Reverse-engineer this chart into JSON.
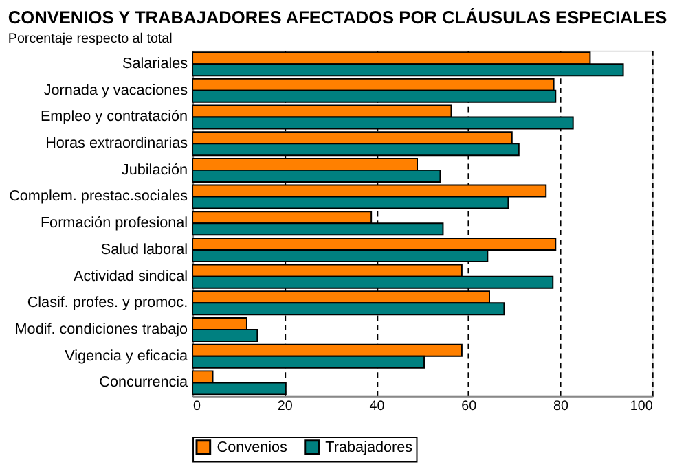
{
  "chart_data": {
    "type": "bar",
    "orientation": "horizontal",
    "title": "CONVENIOS Y TRABAJADORES AFECTADOS POR CLÁUSULAS ESPECIALES",
    "subtitle": "Porcentaje respecto al total",
    "categories": [
      "Salariales",
      "Jornada y vacaciones",
      "Empleo y contratación",
      "Horas extraordinarias",
      "Jubilación",
      "Complem. prestac.sociales",
      "Formación profesional",
      "Salud laboral",
      "Actividad sindical",
      "Clasif. profes. y promoc.",
      "Modif. condiciones trabajo",
      "Vigencia y eficacia",
      "Concurrencia"
    ],
    "series": [
      {
        "name": "Convenios",
        "color": "#ff8000",
        "values": [
          86.5,
          78.6,
          56.3,
          69.5,
          48.9,
          76.9,
          38.9,
          79.0,
          58.6,
          64.6,
          11.8,
          58.6,
          4.4
        ]
      },
      {
        "name": "Trabajadores",
        "color": "#008080",
        "values": [
          93.7,
          79.0,
          82.8,
          71.0,
          53.9,
          68.7,
          54.5,
          64.2,
          78.4,
          67.8,
          14.1,
          50.4,
          20.3
        ]
      }
    ],
    "xlim": [
      0,
      100
    ],
    "xticks": [
      0,
      20,
      40,
      60,
      80,
      100
    ],
    "grid": "x",
    "line_style": "dashed",
    "legend": "bottom"
  }
}
